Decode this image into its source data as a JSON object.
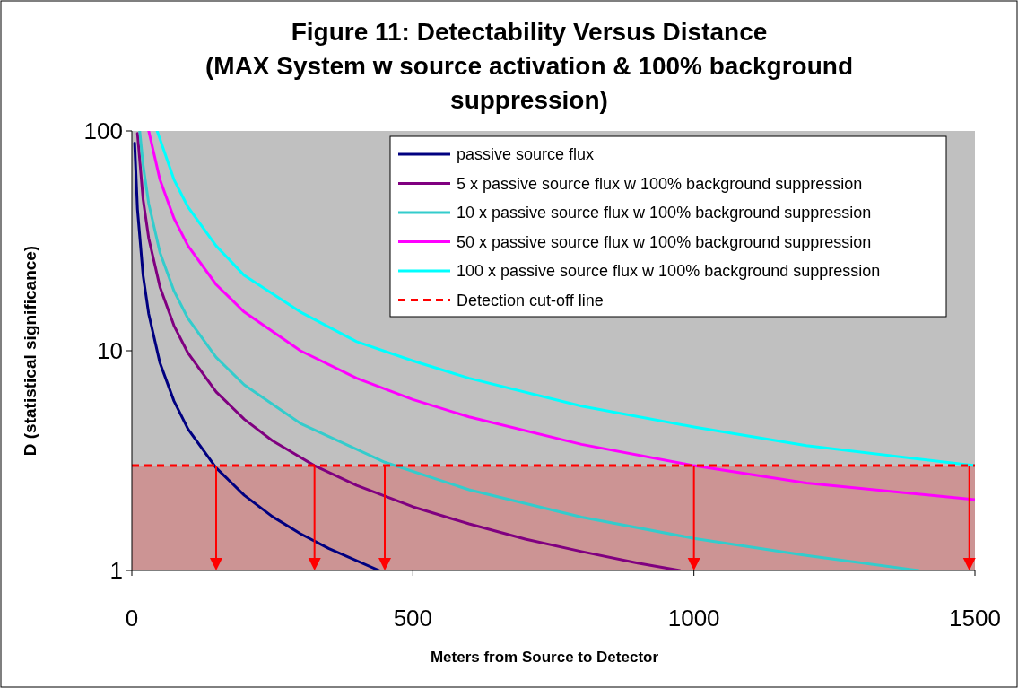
{
  "chart_data": {
    "type": "line",
    "title": "Figure 11: Detectability Versus Distance\n(MAX System w source activation & 100% background\nsuppression)",
    "xlabel": "Meters from Source to Detector",
    "ylabel": "D (statistical significance)",
    "log": "y",
    "xlim": [
      0,
      1500
    ],
    "xticks": [
      0,
      500,
      1000,
      1500
    ],
    "ylim": [
      1,
      100
    ],
    "yticks": [
      1,
      10,
      100
    ],
    "legend": "top right",
    "grid": false,
    "series": [
      {
        "name": "passive source flux",
        "color": "#000080",
        "x": [
          5,
          10,
          20,
          30,
          50,
          75,
          100,
          150,
          200,
          250,
          300,
          350,
          440
        ],
        "values": [
          88,
          44,
          22,
          14.7,
          8.8,
          5.9,
          4.4,
          2.93,
          2.2,
          1.76,
          1.47,
          1.26,
          1.0
        ]
      },
      {
        "name": "5 x passive source flux w 100% background suppression",
        "color": "#800080",
        "x": [
          10,
          20,
          30,
          50,
          75,
          100,
          150,
          200,
          250,
          325,
          400,
          500,
          600,
          700,
          800,
          900,
          975
        ],
        "values": [
          97.5,
          48.8,
          32.5,
          19.5,
          13,
          9.75,
          6.5,
          4.88,
          3.9,
          3,
          2.44,
          1.95,
          1.63,
          1.39,
          1.22,
          1.08,
          1.0
        ]
      },
      {
        "name": "10 x passive source flux w 100% background suppression",
        "color": "#33cccc",
        "x": [
          14,
          20,
          30,
          50,
          75,
          100,
          150,
          200,
          300,
          450,
          600,
          800,
          1000,
          1200,
          1400
        ],
        "values": [
          100,
          70,
          46.7,
          28,
          18.7,
          14,
          9.33,
          7,
          4.67,
          3.11,
          2.33,
          1.75,
          1.4,
          1.17,
          1.0
        ]
      },
      {
        "name": "50 x passive source flux w 100% background suppression",
        "color": "#ff00ff",
        "x": [
          30,
          50,
          75,
          100,
          150,
          200,
          300,
          400,
          500,
          600,
          800,
          1000,
          1200,
          1500
        ],
        "values": [
          100,
          60,
          40,
          30,
          20,
          15,
          10,
          7.5,
          6,
          5,
          3.75,
          3,
          2.5,
          2.1
        ]
      },
      {
        "name": "100 x passive source flux w 100% background suppression",
        "color": "#00ffff",
        "x": [
          45,
          75,
          100,
          150,
          200,
          300,
          400,
          500,
          600,
          800,
          1000,
          1200,
          1500
        ],
        "values": [
          100,
          60,
          45,
          30,
          22,
          15,
          11,
          9,
          7.5,
          5.6,
          4.5,
          3.7,
          3.0
        ]
      }
    ],
    "ref_lines": [
      {
        "axis": "y",
        "value": 3,
        "label": "Detection cut-off line",
        "color": "#ff0000",
        "line_style": "dashed"
      },
      {
        "axis": "x",
        "value": 150,
        "color": "#ff0000"
      },
      {
        "axis": "x",
        "value": 325,
        "color": "#ff0000"
      },
      {
        "axis": "x",
        "value": 450,
        "color": "#ff0000"
      },
      {
        "axis": "x",
        "value": 1000,
        "color": "#ff0000"
      },
      {
        "axis": "x",
        "value": 1490,
        "color": "#ff0000"
      }
    ],
    "bands": [
      {
        "axis": "y",
        "from": 1,
        "to": 3,
        "color": "#cc9494"
      }
    ]
  }
}
